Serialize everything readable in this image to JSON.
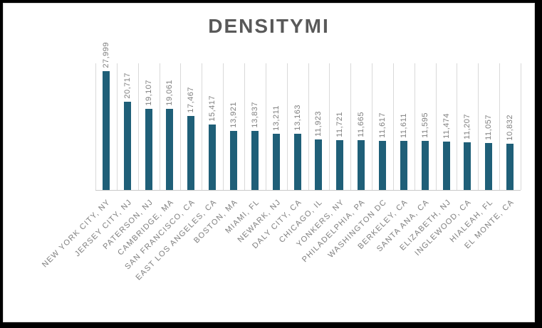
{
  "chart_data": {
    "type": "bar",
    "title": "DENSITYMI",
    "categories": [
      "NEW YORK CITY, NY",
      "JERSEY CITY, NJ",
      "PATERSON, NJ",
      "CAMBRIDGE, MA",
      "SAN FRANCISCO, CA",
      "EAST LOS ANGELES, CA",
      "BOSTON, MA",
      "MIAMI, FL",
      "NEWARK, NJ",
      "DALY CITY, CA",
      "CHICAGO, IL",
      "YONKERS, NY",
      "PHILADELPHIA, PA",
      "WASHINGTON DC",
      "BERKELEY, CA",
      "SANTA ANA, CA",
      "ELIZABETH, NJ",
      "INGLEWOOD, CA",
      "HIALEAH, FL",
      "EL MONTE, CA"
    ],
    "values": [
      27999,
      20717,
      19107,
      19061,
      17467,
      15417,
      13921,
      13837,
      13211,
      13163,
      11923,
      11721,
      11665,
      11617,
      11611,
      11595,
      11474,
      11207,
      11057,
      10832
    ],
    "value_labels": [
      "27,999",
      "20,717",
      "19,107",
      "19,061",
      "17,467",
      "15,417",
      "13,921",
      "13,837",
      "13,211",
      "13,163",
      "11,923",
      "11,721",
      "11,665",
      "11,617",
      "11,611",
      "11,595",
      "11,474",
      "11,207",
      "11,057",
      "10,832"
    ],
    "xlabel": "",
    "ylabel": "",
    "ylim": [
      0,
      30000
    ],
    "legend": "none",
    "grid": "vertical-category-separators",
    "data_labels": "outside-end rotated 90",
    "colors": {
      "bar": "#1f5f78",
      "gridline": "#d9d9d9",
      "axis_line": "#c8c8c8",
      "label_text": "#7f7f7f",
      "title_text": "#595959",
      "frame": "#000000",
      "background": "#ffffff"
    }
  }
}
